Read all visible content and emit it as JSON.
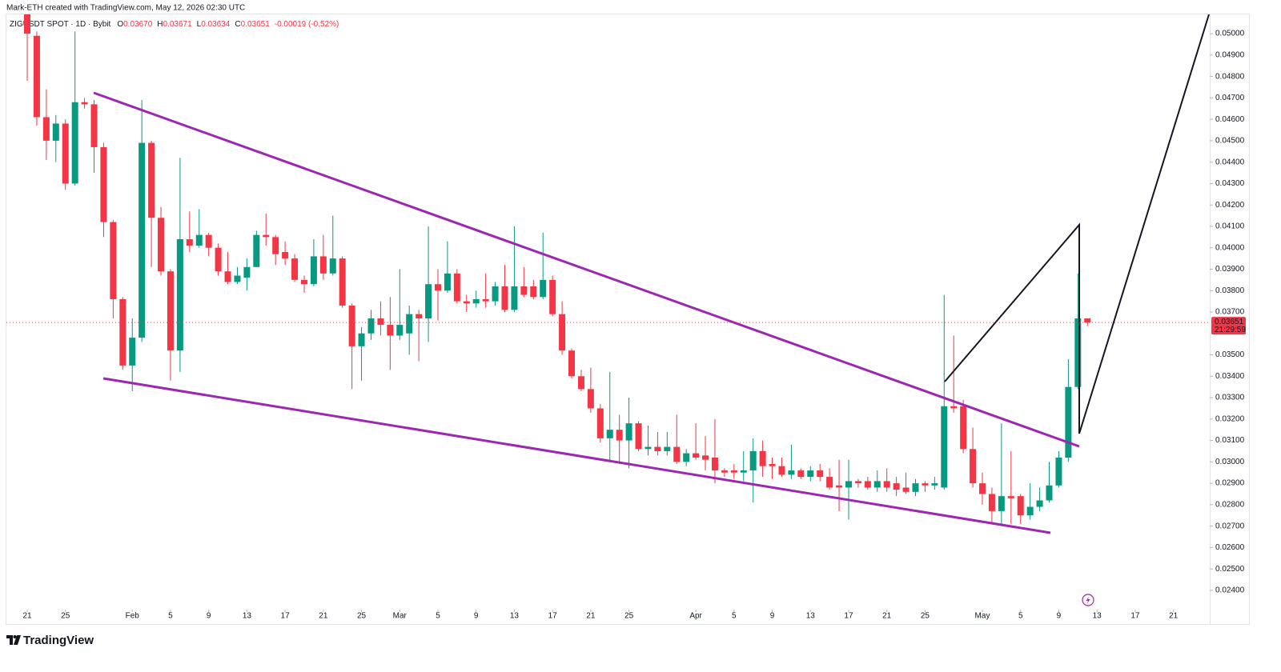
{
  "chart_data": {
    "type": "candlestick",
    "credit": "Mark-ETH created with TradingView.com, May 12, 2026 02:30 UTC",
    "legend": {
      "symbol": "ZIGUSDT SPOT · 1D · Bybit",
      "fields": [
        {
          "key": "O",
          "value": "0.03670"
        },
        {
          "key": "H",
          "value": "0.03671"
        },
        {
          "key": "L",
          "value": "0.03634"
        },
        {
          "key": "C",
          "value": "0.03651"
        }
      ],
      "change": "-0.00019 (-0.52%)"
    },
    "brand": "TradingView",
    "up_color": "#089981",
    "down_color": "#f23645",
    "last_price_label": "0.03651",
    "countdown": "21:29:59",
    "grid": false,
    "ylim": [
      0.0231,
      0.0509
    ],
    "yticks": [
      {
        "value": 0.024,
        "label": "0.02400"
      },
      {
        "value": 0.025,
        "label": "0.02500"
      },
      {
        "value": 0.026,
        "label": "0.02600"
      },
      {
        "value": 0.027,
        "label": "0.02700"
      },
      {
        "value": 0.028,
        "label": "0.02800"
      },
      {
        "value": 0.029,
        "label": "0.02900"
      },
      {
        "value": 0.03,
        "label": "0.03000"
      },
      {
        "value": 0.031,
        "label": "0.03100"
      },
      {
        "value": 0.032,
        "label": "0.03200"
      },
      {
        "value": 0.033,
        "label": "0.03300"
      },
      {
        "value": 0.034,
        "label": "0.03400"
      },
      {
        "value": 0.035,
        "label": "0.03500"
      },
      {
        "value": 0.037,
        "label": "0.03700"
      },
      {
        "value": 0.038,
        "label": "0.03800"
      },
      {
        "value": 0.039,
        "label": "0.03900"
      },
      {
        "value": 0.04,
        "label": "0.04000"
      },
      {
        "value": 0.041,
        "label": "0.04100"
      },
      {
        "value": 0.042,
        "label": "0.04200"
      },
      {
        "value": 0.043,
        "label": "0.04300"
      },
      {
        "value": 0.044,
        "label": "0.04400"
      },
      {
        "value": 0.045,
        "label": "0.04500"
      },
      {
        "value": 0.046,
        "label": "0.04600"
      },
      {
        "value": 0.047,
        "label": "0.04700"
      },
      {
        "value": 0.048,
        "label": "0.04800"
      },
      {
        "value": 0.049,
        "label": "0.04900"
      },
      {
        "value": 0.05,
        "label": "0.05000"
      }
    ],
    "xticks": [
      {
        "value": "2026-01-21",
        "label": "21"
      },
      {
        "value": "2026-01-25",
        "label": "25"
      },
      {
        "value": "2026-02-01",
        "label": "Feb"
      },
      {
        "value": "2026-02-05",
        "label": "5"
      },
      {
        "value": "2026-02-09",
        "label": "9"
      },
      {
        "value": "2026-02-13",
        "label": "13"
      },
      {
        "value": "2026-02-17",
        "label": "17"
      },
      {
        "value": "2026-02-21",
        "label": "21"
      },
      {
        "value": "2026-02-25",
        "label": "25"
      },
      {
        "value": "2026-03-01",
        "label": "Mar"
      },
      {
        "value": "2026-03-05",
        "label": "5"
      },
      {
        "value": "2026-03-09",
        "label": "9"
      },
      {
        "value": "2026-03-13",
        "label": "13"
      },
      {
        "value": "2026-03-17",
        "label": "17"
      },
      {
        "value": "2026-03-21",
        "label": "21"
      },
      {
        "value": "2026-03-25",
        "label": "25"
      },
      {
        "value": "2026-04-01",
        "label": "Apr"
      },
      {
        "value": "2026-04-05",
        "label": "5"
      },
      {
        "value": "2026-04-09",
        "label": "9"
      },
      {
        "value": "2026-04-13",
        "label": "13"
      },
      {
        "value": "2026-04-17",
        "label": "17"
      },
      {
        "value": "2026-04-21",
        "label": "21"
      },
      {
        "value": "2026-04-25",
        "label": "25"
      },
      {
        "value": "2026-05-01",
        "label": "May"
      },
      {
        "value": "2026-05-05",
        "label": "5"
      },
      {
        "value": "2026-05-09",
        "label": "9"
      },
      {
        "value": "2026-05-13",
        "label": "13"
      },
      {
        "value": "2026-05-17",
        "label": "17"
      },
      {
        "value": "2026-05-21",
        "label": "21"
      }
    ],
    "categories": [
      "2026-01-21",
      "2026-01-22",
      "2026-01-23",
      "2026-01-24",
      "2026-01-25",
      "2026-01-26",
      "2026-01-27",
      "2026-01-28",
      "2026-01-29",
      "2026-01-30",
      "2026-01-31",
      "2026-02-01",
      "2026-02-02",
      "2026-02-03",
      "2026-02-04",
      "2026-02-05",
      "2026-02-06",
      "2026-02-07",
      "2026-02-08",
      "2026-02-09",
      "2026-02-10",
      "2026-02-11",
      "2026-02-12",
      "2026-02-13",
      "2026-02-14",
      "2026-02-15",
      "2026-02-16",
      "2026-02-17",
      "2026-02-18",
      "2026-02-19",
      "2026-02-20",
      "2026-02-21",
      "2026-02-22",
      "2026-02-23",
      "2026-02-24",
      "2026-02-25",
      "2026-02-26",
      "2026-02-27",
      "2026-02-28",
      "2026-03-01",
      "2026-03-02",
      "2026-03-03",
      "2026-03-04",
      "2026-03-05",
      "2026-03-06",
      "2026-03-07",
      "2026-03-08",
      "2026-03-09",
      "2026-03-10",
      "2026-03-11",
      "2026-03-12",
      "2026-03-13",
      "2026-03-14",
      "2026-03-15",
      "2026-03-16",
      "2026-03-17",
      "2026-03-18",
      "2026-03-19",
      "2026-03-20",
      "2026-03-21",
      "2026-03-22",
      "2026-03-23",
      "2026-03-24",
      "2026-03-25",
      "2026-03-26",
      "2026-03-27",
      "2026-03-28",
      "2026-03-29",
      "2026-03-30",
      "2026-03-31",
      "2026-04-01",
      "2026-04-02",
      "2026-04-03",
      "2026-04-04",
      "2026-04-05",
      "2026-04-06",
      "2026-04-07",
      "2026-04-08",
      "2026-04-09",
      "2026-04-10",
      "2026-04-11",
      "2026-04-12",
      "2026-04-13",
      "2026-04-14",
      "2026-04-15",
      "2026-04-16",
      "2026-04-17",
      "2026-04-18",
      "2026-04-19",
      "2026-04-20",
      "2026-04-21",
      "2026-04-22",
      "2026-04-23",
      "2026-04-24",
      "2026-04-25",
      "2026-04-26",
      "2026-04-27",
      "2026-04-28",
      "2026-04-29",
      "2026-04-30",
      "2026-05-01",
      "2026-05-02",
      "2026-05-03",
      "2026-05-04",
      "2026-05-05",
      "2026-05-06",
      "2026-05-07",
      "2026-05-08",
      "2026-05-09",
      "2026-05-10",
      "2026-05-11",
      "2026-05-12"
    ],
    "open": [
      0.051,
      0.0499,
      0.0461,
      0.045,
      0.0458,
      0.043,
      0.0468,
      0.0467,
      0.0447,
      0.0412,
      0.0376,
      0.0345,
      0.0358,
      0.0449,
      0.0414,
      0.0389,
      0.0352,
      0.0404,
      0.0401,
      0.0406,
      0.04,
      0.0389,
      0.0384,
      0.0386,
      0.0391,
      0.0406,
      0.0405,
      0.0398,
      0.0395,
      0.0385,
      0.0383,
      0.0396,
      0.0388,
      0.0395,
      0.0373,
      0.0354,
      0.036,
      0.0367,
      0.0364,
      0.0359,
      0.036,
      0.0369,
      0.0367,
      0.0383,
      0.038,
      0.0388,
      0.0375,
      0.0374,
      0.0376,
      0.0375,
      0.0382,
      0.0371,
      0.0382,
      0.0382,
      0.0377,
      0.0385,
      0.0369,
      0.0352,
      0.034,
      0.0334,
      0.0325,
      0.0311,
      0.0315,
      0.031,
      0.0318,
      0.0306,
      0.0307,
      0.0305,
      0.0307,
      0.03,
      0.0304,
      0.0303,
      0.0302,
      0.0296,
      0.0296,
      0.0295,
      0.0296,
      0.0305,
      0.0299,
      0.0298,
      0.0294,
      0.0296,
      0.0293,
      0.0296,
      0.0293,
      0.0289,
      0.0288,
      0.0291,
      0.0291,
      0.0288,
      0.0291,
      0.029,
      0.0288,
      0.0286,
      0.029,
      0.0289,
      0.0288,
      0.0326,
      0.0326,
      0.0306,
      0.029,
      0.0285,
      0.0277,
      0.0284,
      0.0284,
      0.0275,
      0.0279,
      0.0282,
      0.0289,
      0.0302,
      0.0335,
      0.0367
    ],
    "high": [
      0.0515,
      0.0501,
      0.0474,
      0.0462,
      0.046,
      0.0501,
      0.047,
      0.0469,
      0.0449,
      0.0413,
      0.0377,
      0.0367,
      0.0469,
      0.045,
      0.0419,
      0.039,
      0.0442,
      0.0417,
      0.0418,
      0.0407,
      0.0402,
      0.0398,
      0.0391,
      0.0395,
      0.0408,
      0.0416,
      0.0406,
      0.0403,
      0.0397,
      0.0387,
      0.0404,
      0.0406,
      0.0415,
      0.0396,
      0.0374,
      0.0363,
      0.0371,
      0.0375,
      0.0377,
      0.039,
      0.0373,
      0.0371,
      0.041,
      0.039,
      0.0403,
      0.039,
      0.0378,
      0.038,
      0.0388,
      0.0384,
      0.0392,
      0.041,
      0.0391,
      0.0385,
      0.0407,
      0.0387,
      0.0375,
      0.0353,
      0.0343,
      0.0344,
      0.0327,
      0.0342,
      0.0322,
      0.033,
      0.0319,
      0.0317,
      0.0314,
      0.0314,
      0.0322,
      0.0306,
      0.0318,
      0.0312,
      0.032,
      0.0297,
      0.0299,
      0.0305,
      0.0311,
      0.031,
      0.0302,
      0.0302,
      0.0308,
      0.0297,
      0.0298,
      0.0299,
      0.0297,
      0.0301,
      0.0301,
      0.0292,
      0.0293,
      0.0296,
      0.0297,
      0.0293,
      0.0295,
      0.0292,
      0.0291,
      0.0293,
      0.0378,
      0.0359,
      0.0329,
      0.0316,
      0.0295,
      0.0288,
      0.0318,
      0.0305,
      0.0285,
      0.029,
      0.0288,
      0.03,
      0.0305,
      0.0348,
      0.0388,
      0.03671
    ],
    "low": [
      0.0478,
      0.0457,
      0.0441,
      0.044,
      0.0427,
      0.0429,
      0.0465,
      0.0435,
      0.0405,
      0.0367,
      0.0343,
      0.0333,
      0.0356,
      0.0391,
      0.0387,
      0.0338,
      0.0342,
      0.0398,
      0.04,
      0.0396,
      0.0387,
      0.0383,
      0.0383,
      0.038,
      0.0391,
      0.0401,
      0.0392,
      0.0392,
      0.0384,
      0.0379,
      0.0382,
      0.0385,
      0.0387,
      0.0372,
      0.0334,
      0.0338,
      0.0357,
      0.0359,
      0.0343,
      0.0357,
      0.035,
      0.0347,
      0.0356,
      0.0366,
      0.0379,
      0.0374,
      0.037,
      0.0372,
      0.0372,
      0.0373,
      0.037,
      0.037,
      0.0377,
      0.0376,
      0.0376,
      0.0368,
      0.035,
      0.0339,
      0.0333,
      0.0323,
      0.0309,
      0.03,
      0.0299,
      0.0297,
      0.0305,
      0.0303,
      0.0303,
      0.0303,
      0.0299,
      0.0298,
      0.0301,
      0.0296,
      0.029,
      0.0293,
      0.0292,
      0.0291,
      0.0281,
      0.0293,
      0.0292,
      0.0293,
      0.0292,
      0.0292,
      0.0291,
      0.0291,
      0.0287,
      0.0277,
      0.0273,
      0.0288,
      0.0287,
      0.0286,
      0.0286,
      0.0284,
      0.0285,
      0.0284,
      0.0286,
      0.0287,
      0.0287,
      0.0323,
      0.0304,
      0.0288,
      0.028,
      0.0271,
      0.0271,
      0.0271,
      0.0271,
      0.0273,
      0.0277,
      0.0281,
      0.0288,
      0.03,
      0.0334,
      0.03634
    ],
    "close": [
      0.05,
      0.0461,
      0.045,
      0.0458,
      0.043,
      0.0468,
      0.0467,
      0.0447,
      0.0412,
      0.0376,
      0.0345,
      0.0358,
      0.0449,
      0.0414,
      0.0389,
      0.0352,
      0.0404,
      0.0401,
      0.0406,
      0.04,
      0.0389,
      0.0384,
      0.0387,
      0.0391,
      0.0406,
      0.0405,
      0.0397,
      0.0395,
      0.0385,
      0.0383,
      0.0396,
      0.0388,
      0.0395,
      0.0373,
      0.0354,
      0.036,
      0.0367,
      0.0364,
      0.0359,
      0.0364,
      0.0369,
      0.0367,
      0.0383,
      0.038,
      0.0388,
      0.0375,
      0.0374,
      0.0376,
      0.0375,
      0.0382,
      0.0371,
      0.0382,
      0.0378,
      0.0377,
      0.0385,
      0.0369,
      0.0352,
      0.034,
      0.0334,
      0.0325,
      0.0311,
      0.0315,
      0.031,
      0.0318,
      0.0306,
      0.0307,
      0.0305,
      0.0307,
      0.03,
      0.0304,
      0.0302,
      0.0301,
      0.0296,
      0.0295,
      0.0295,
      0.0296,
      0.0305,
      0.0298,
      0.0298,
      0.0294,
      0.0296,
      0.0293,
      0.0296,
      0.0293,
      0.0288,
      0.0288,
      0.0291,
      0.029,
      0.0288,
      0.0291,
      0.0288,
      0.0287,
      0.0286,
      0.029,
      0.0289,
      0.029,
      0.0326,
      0.0325,
      0.0306,
      0.029,
      0.0285,
      0.0277,
      0.0284,
      0.0283,
      0.0275,
      0.0279,
      0.0282,
      0.0289,
      0.0302,
      0.0335,
      0.0367,
      0.03651
    ]
  }
}
